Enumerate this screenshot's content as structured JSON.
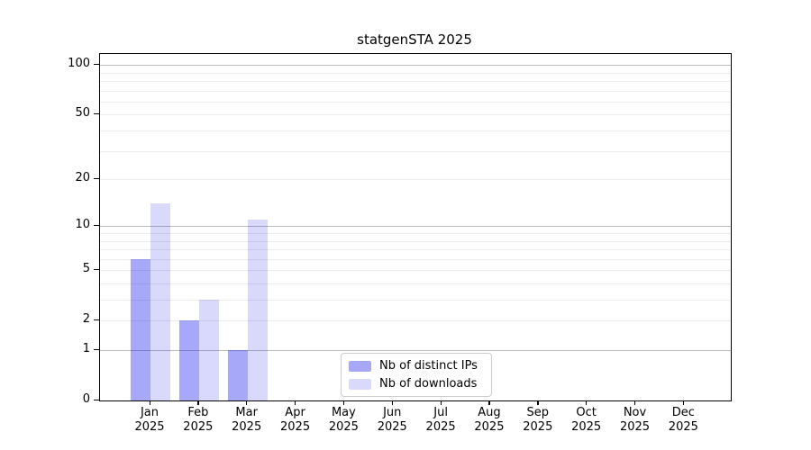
{
  "title": "statgenSTA 2025",
  "chart_data": {
    "type": "bar",
    "title": "statgenSTA 2025",
    "categories": [
      "Jan",
      "Feb",
      "Mar",
      "Apr",
      "May",
      "Jun",
      "Jul",
      "Aug",
      "Sep",
      "Oct",
      "Nov",
      "Dec"
    ],
    "category_year": "2025",
    "series": [
      {
        "name": "Nb of distinct IPs",
        "values": [
          6,
          2,
          1,
          0,
          0,
          0,
          0,
          0,
          0,
          0,
          0,
          0
        ],
        "color": "rgba(0,0,238,0.34)"
      },
      {
        "name": "Nb of downloads",
        "values": [
          14,
          3,
          11,
          0,
          0,
          0,
          0,
          0,
          0,
          0,
          0,
          0
        ],
        "color": "rgba(0,0,238,0.15)"
      }
    ],
    "yscale": "log10(value+1)",
    "ylim": [
      0,
      116
    ],
    "y_ticks": [
      0,
      1,
      2,
      5,
      10,
      20,
      50,
      100
    ],
    "grid": "on",
    "grid_major": [
      1,
      10,
      100
    ],
    "grid_minor": [
      2,
      3,
      4,
      5,
      6,
      7,
      8,
      9,
      20,
      30,
      40,
      50,
      60,
      70,
      80,
      90
    ],
    "legend_position": "inside-bottom-center",
    "xlabel": "",
    "ylabel": ""
  },
  "colors": {
    "bar_distinct_ips": "rgba(0,0,238,0.34)",
    "bar_downloads": "rgba(0,0,238,0.15)",
    "grid_major": "#bdbdbd",
    "grid_minor": "#ececec",
    "axis": "#000000",
    "legend_border": "#cccccc"
  }
}
